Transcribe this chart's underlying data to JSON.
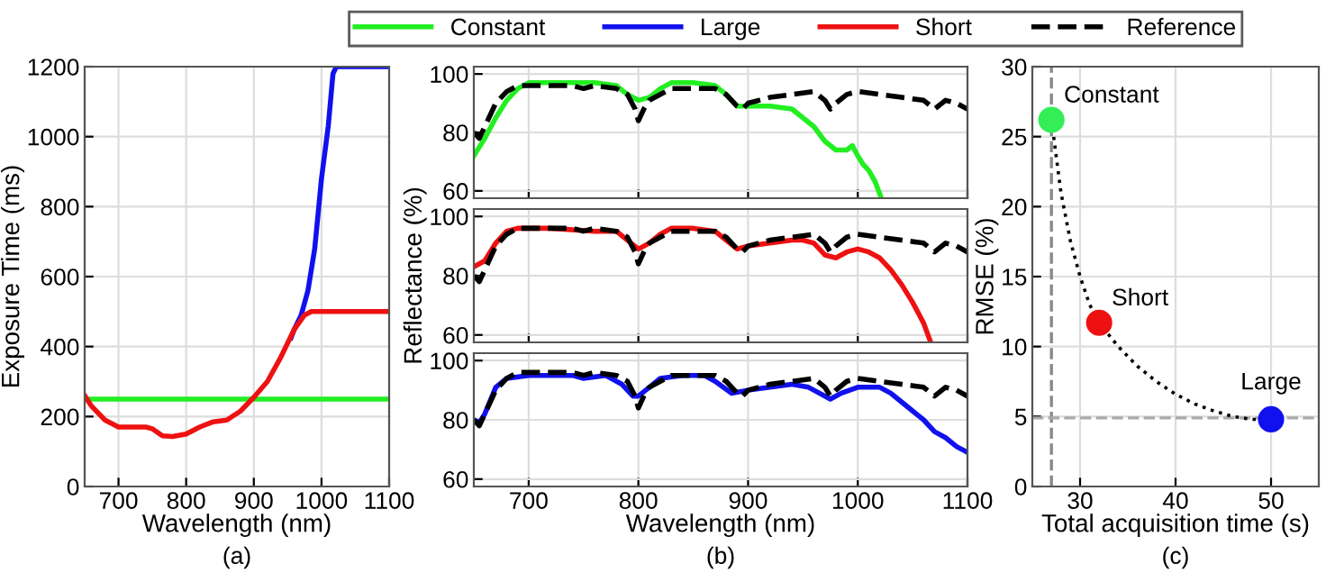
{
  "chart_data": [
    {
      "type": "line",
      "xlabel": "Wavelength (nm)",
      "ylabel": "Exposure Time (ms)",
      "annotations": [
        "(a)"
      ],
      "xlim": [
        650,
        1100
      ],
      "ylim": [
        0,
        1200
      ],
      "xticks": [
        700,
        800,
        900,
        1000,
        1100
      ],
      "yticks": [
        0,
        200,
        400,
        600,
        800,
        1000,
        1200
      ],
      "grid": true,
      "legend": "top",
      "series": [
        {
          "name": "Constant",
          "color": "#22ee22",
          "x": [
            650,
            1100
          ],
          "values": [
            250,
            250
          ]
        },
        {
          "name": "Large",
          "color": "#1111ee",
          "x": [
            955,
            960,
            970,
            980,
            990,
            1000,
            1010,
            1017,
            1022,
            1100
          ],
          "values": [
            425,
            450,
            490,
            560,
            680,
            880,
            1030,
            1180,
            1200,
            1200
          ]
        },
        {
          "name": "Short",
          "color": "#ee1111",
          "x": [
            650,
            660,
            680,
            700,
            720,
            740,
            750,
            765,
            780,
            800,
            820,
            840,
            860,
            880,
            900,
            920,
            940,
            960,
            975,
            985,
            1100
          ],
          "values": [
            260,
            230,
            190,
            170,
            170,
            170,
            165,
            145,
            143,
            150,
            170,
            185,
            190,
            215,
            255,
            300,
            370,
            450,
            490,
            500,
            500
          ]
        }
      ]
    },
    {
      "type": "line",
      "xlim": [
        650,
        1100
      ],
      "ylim": [
        57.5,
        102.5
      ],
      "xticks": [
        700,
        800,
        900,
        1000,
        1100
      ],
      "yticks": [
        60,
        80,
        100
      ],
      "grid": true,
      "tick_labels": "y",
      "series": [
        {
          "color": "#22ee22",
          "x": [
            650,
            660,
            670,
            680,
            690,
            700,
            720,
            740,
            760,
            780,
            790,
            800,
            810,
            820,
            830,
            850,
            870,
            880,
            890,
            900,
            920,
            940,
            960,
            970,
            980,
            990,
            995,
            1000,
            1005,
            1010,
            1016,
            1021
          ],
          "values": [
            72,
            78,
            85,
            91,
            95,
            97,
            97,
            97,
            97,
            96,
            93,
            91,
            92,
            95,
            97,
            97,
            96,
            93,
            89,
            89,
            89,
            88,
            82,
            77,
            74,
            74,
            75.5,
            72,
            69,
            67,
            63,
            58
          ]
        },
        {
          "name": "Reference",
          "color": "#000000",
          "line_style": "dashed",
          "x": [
            650,
            655,
            660,
            670,
            680,
            690,
            700,
            720,
            740,
            750,
            760,
            780,
            790,
            797,
            800,
            805,
            810,
            820,
            830,
            850,
            870,
            880,
            890,
            895,
            900,
            910,
            920,
            940,
            960,
            970,
            975,
            980,
            990,
            1000,
            1020,
            1040,
            1060,
            1070,
            1080,
            1090,
            1100
          ],
          "values": [
            80,
            78,
            82,
            90,
            94,
            96,
            96,
            96,
            96,
            95,
            96,
            95,
            93,
            88,
            84,
            88,
            91,
            93,
            95,
            95,
            95,
            93,
            89,
            88,
            90,
            91,
            92,
            93,
            94,
            91,
            88,
            90,
            93,
            94,
            93,
            92,
            91,
            88,
            91,
            90,
            88
          ]
        }
      ]
    },
    {
      "type": "line",
      "ylabel": "Reflectance (%)",
      "xlim": [
        650,
        1100
      ],
      "ylim": [
        57.5,
        102.5
      ],
      "xticks": [
        700,
        800,
        900,
        1000,
        1100
      ],
      "yticks": [
        60,
        80,
        100
      ],
      "grid": true,
      "tick_labels": "y",
      "series": [
        {
          "color": "#ee1111",
          "x": [
            650,
            660,
            670,
            680,
            690,
            720,
            760,
            780,
            790,
            800,
            810,
            820,
            830,
            850,
            870,
            880,
            890,
            900,
            920,
            940,
            950,
            960,
            970,
            980,
            990,
            1000,
            1010,
            1020,
            1030,
            1040,
            1050,
            1060,
            1066
          ],
          "values": [
            83,
            85,
            91,
            95,
            96,
            96,
            95,
            95,
            92,
            89,
            91,
            94,
            96,
            96,
            95,
            92,
            89,
            90,
            91,
            92,
            92,
            91,
            87,
            86,
            88,
            89,
            88,
            86,
            82,
            77,
            71,
            64,
            58
          ]
        },
        {
          "color": "#000000",
          "line_style": "dashed",
          "x": [
            650,
            655,
            660,
            670,
            680,
            690,
            700,
            720,
            740,
            750,
            760,
            780,
            790,
            797,
            800,
            805,
            810,
            820,
            830,
            850,
            870,
            880,
            890,
            895,
            900,
            910,
            920,
            940,
            960,
            970,
            975,
            980,
            990,
            1000,
            1020,
            1040,
            1060,
            1070,
            1080,
            1090,
            1100
          ],
          "values": [
            80,
            78,
            82,
            90,
            94,
            96,
            96,
            96,
            96,
            95,
            96,
            95,
            93,
            88,
            84,
            88,
            91,
            93,
            95,
            95,
            95,
            93,
            89,
            88,
            90,
            91,
            92,
            93,
            94,
            91,
            88,
            90,
            93,
            94,
            93,
            92,
            91,
            88,
            91,
            90,
            88
          ]
        }
      ]
    },
    {
      "type": "line",
      "xlabel": "Wavelength (nm)",
      "annotations": [
        "(b)"
      ],
      "xlim": [
        650,
        1100
      ],
      "ylim": [
        57.5,
        102.5
      ],
      "xticks": [
        700,
        800,
        900,
        1000,
        1100
      ],
      "yticks": [
        60,
        80,
        100
      ],
      "grid": true,
      "series": [
        {
          "color": "#1111ee",
          "x": [
            650,
            655,
            660,
            670,
            680,
            700,
            720,
            740,
            750,
            770,
            785,
            795,
            800,
            810,
            820,
            840,
            860,
            870,
            885,
            900,
            920,
            940,
            955,
            965,
            975,
            985,
            1000,
            1020,
            1030,
            1040,
            1060,
            1070,
            1080,
            1090,
            1100
          ],
          "values": [
            80,
            79,
            82,
            91,
            94,
            95,
            95,
            95,
            94,
            95,
            92,
            88,
            88,
            91,
            94,
            95,
            95,
            93,
            89,
            90,
            91,
            92,
            91,
            89,
            87,
            89,
            91,
            91,
            89,
            86,
            80,
            76,
            74,
            71,
            69
          ]
        },
        {
          "color": "#000000",
          "line_style": "dashed",
          "x": [
            650,
            655,
            660,
            670,
            680,
            690,
            700,
            720,
            740,
            750,
            760,
            780,
            790,
            797,
            800,
            805,
            810,
            820,
            830,
            850,
            870,
            880,
            890,
            895,
            900,
            910,
            920,
            940,
            960,
            970,
            975,
            980,
            990,
            1000,
            1020,
            1040,
            1060,
            1070,
            1080,
            1090,
            1100
          ],
          "values": [
            80,
            78,
            82,
            90,
            94,
            96,
            96,
            96,
            96,
            95,
            96,
            95,
            93,
            88,
            84,
            88,
            91,
            93,
            95,
            95,
            95,
            93,
            89,
            88,
            90,
            91,
            92,
            93,
            94,
            91,
            88,
            90,
            93,
            94,
            93,
            92,
            91,
            88,
            91,
            90,
            88
          ]
        }
      ]
    },
    {
      "type": "scatter",
      "xlabel": "Total acquisition time (s)",
      "ylabel": "RMSE (%)",
      "xlim": [
        25,
        55
      ],
      "ylim": [
        0,
        30
      ],
      "xticks": [
        30,
        40,
        50
      ],
      "yticks": [
        0,
        5,
        10,
        15,
        20,
        25,
        30
      ],
      "grid": true,
      "annotations": [
        {
          "text": "Constant",
          "x": 27,
          "y": 26.2
        },
        {
          "text": "Short",
          "x": 32,
          "y": 11.7
        },
        {
          "text": "Large",
          "x": 50,
          "y": 4.8
        },
        "(c)"
      ],
      "ref_lines": [
        {
          "axis": "x",
          "value": 27,
          "color": "#888888",
          "line_style": "dashed"
        },
        {
          "axis": "y",
          "value": 4.9,
          "color": "#aaaaaa",
          "line_style": "dashed"
        }
      ],
      "series": [
        {
          "type": "line",
          "color": "#000000",
          "line_style": "dotted",
          "x": [
            27,
            28,
            29,
            30,
            31,
            32,
            34,
            36,
            38,
            40,
            42,
            44,
            46,
            48,
            50
          ],
          "values": [
            26.2,
            21,
            17.5,
            15,
            13,
            11.7,
            10,
            8.6,
            7.5,
            6.6,
            5.9,
            5.4,
            5.0,
            4.8,
            4.8
          ]
        },
        {
          "marker": "circle",
          "colors": [
            "#33ee55",
            "#ee1111",
            "#1111ee"
          ],
          "x": [
            27,
            32,
            50
          ],
          "values": [
            26.2,
            11.7,
            4.8
          ]
        }
      ]
    }
  ]
}
